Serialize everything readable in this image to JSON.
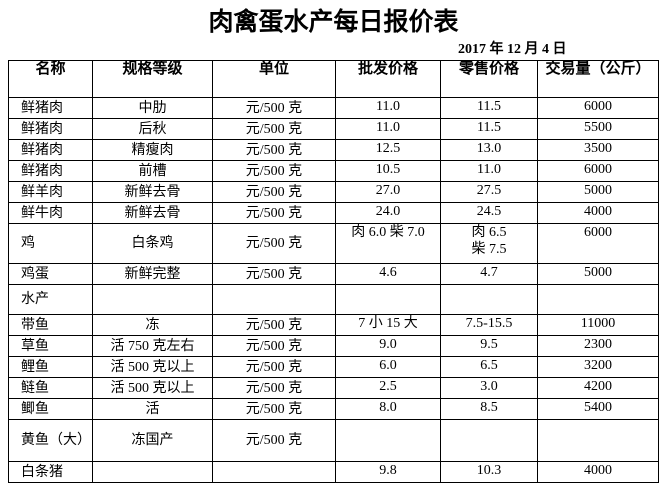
{
  "header": {
    "title": "肉禽蛋水产每日报价表",
    "date": "2017 年 12 月 4 日"
  },
  "table": {
    "columns": [
      "名称",
      "规格等级",
      "单位",
      "批发价格",
      "零售价格",
      "交易量（公斤）"
    ],
    "rows": [
      [
        "鲜猪肉",
        "中肋",
        "元/500 克",
        "11.0",
        "11.5",
        "6000"
      ],
      [
        "鲜猪肉",
        "后秋",
        "元/500 克",
        "11.0",
        "11.5",
        "5500"
      ],
      [
        "鲜猪肉",
        "精瘦肉",
        "元/500 克",
        "12.5",
        "13.0",
        "3500"
      ],
      [
        "鲜猪肉",
        "前槽",
        "元/500 克",
        "10.5",
        "11.0",
        "6000"
      ],
      [
        "鲜羊肉",
        "新鲜去骨",
        "元/500 克",
        "27.0",
        "27.5",
        "5000"
      ],
      [
        "鲜牛肉",
        "新鲜去骨",
        "元/500 克",
        "24.0",
        "24.5",
        "4000"
      ],
      [
        "鸡",
        "白条鸡",
        "元/500 克",
        "肉 6.0 柴 7.0",
        "肉 6.5\n柴 7.5",
        "6000"
      ],
      [
        "鸡蛋",
        "新鲜完整",
        "元/500 克",
        "4.6",
        "4.7",
        "5000"
      ],
      [
        "水产",
        null,
        null,
        null,
        null,
        null
      ],
      [
        "带鱼",
        "冻",
        "元/500 克",
        "7 小 15 大",
        "7.5-15.5",
        "11000"
      ],
      [
        "草鱼",
        "活 750 克左右",
        "元/500 克",
        "9.0",
        "9.5",
        "2300"
      ],
      [
        "鲤鱼",
        "活 500 克以上",
        "元/500 克",
        "6.0",
        "6.5",
        "3200"
      ],
      [
        "鲢鱼",
        "活 500 克以上",
        "元/500 克",
        "2.5",
        "3.0",
        "4200"
      ],
      [
        "鲫鱼",
        "活",
        "元/500 克",
        "8.0",
        "8.5",
        "5400"
      ],
      [
        "黄鱼（大）",
        "冻国产",
        "元/500 克",
        null,
        null,
        null
      ],
      [
        "白条猪",
        null,
        null,
        "9.8",
        "10.3",
        "4000"
      ]
    ]
  }
}
